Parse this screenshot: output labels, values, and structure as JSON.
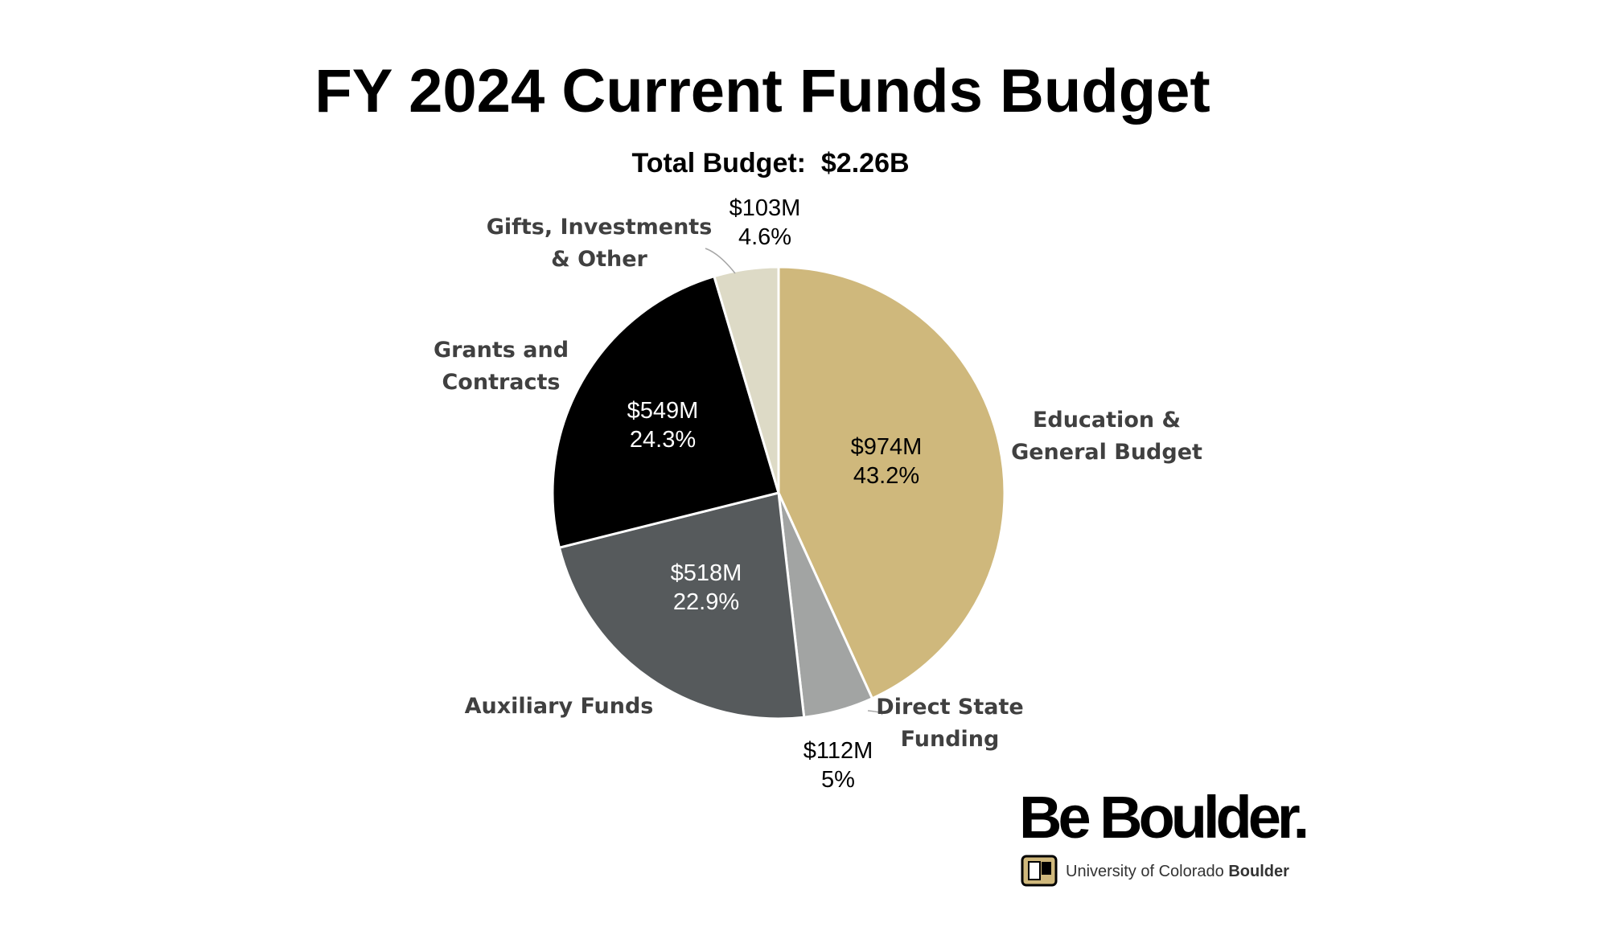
{
  "chart_data": {
    "type": "pie",
    "title": "FY 2024 Current Funds Budget",
    "subtitle": "Total Budget:  $2.26B",
    "slices": [
      {
        "label": [
          "Education &",
          "General Budget"
        ],
        "amount": "$974M",
        "percent_label": "43.2%",
        "value": 43.2,
        "color": "#CFB87C"
      },
      {
        "label": [
          "Direct State",
          "Funding"
        ],
        "amount": "$112M",
        "percent_label": "5%",
        "value": 5.0,
        "color": "#A2A4A3"
      },
      {
        "label": [
          "Auxiliary Funds"
        ],
        "amount": "$518M",
        "percent_label": "22.9%",
        "value": 22.9,
        "color": "#565A5C"
      },
      {
        "label": [
          "Grants and",
          "Contracts"
        ],
        "amount": "$549M",
        "percent_label": "24.3%",
        "value": 24.3,
        "color": "#000000"
      },
      {
        "label": [
          "Gifts, Investments",
          "& Other"
        ],
        "amount": "$103M",
        "percent_label": "4.6%",
        "value": 4.6,
        "color": "#DDDAC6"
      }
    ]
  },
  "logo": {
    "wordmark": "Be Boulder.",
    "university_prefix": "University of Colorado",
    "university_bold": "Boulder"
  }
}
